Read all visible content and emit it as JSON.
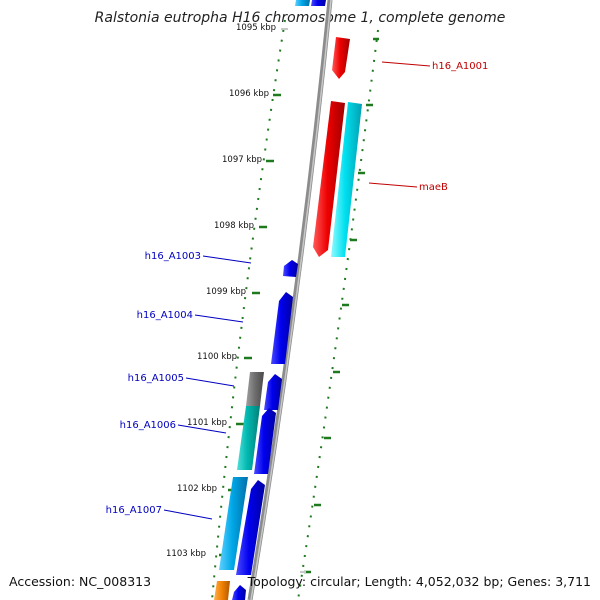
{
  "title": "Ralstonia eutropha H16 chromosome 1, complete genome",
  "footer": {
    "accession": "Accession: NC_008313",
    "topology": "Topology: circular; Length: 4,052,032 bp; Genes: 3,711"
  },
  "colors": {
    "backbone": "#8c8c8c",
    "tick": "#1f7a1f",
    "forward_label": "#c00000",
    "reverse_label": "#0000c0",
    "red": "#ee0000",
    "blue": "#0000ee",
    "cyan": "#00d8e8",
    "teal": "#00b8b0",
    "sky": "#00a8e8",
    "grey": "#6e6e6e",
    "orange": "#f08000"
  },
  "ticks": [
    "1095 kbp",
    "1096 kbp",
    "1097 kbp",
    "1098 kbp",
    "1099 kbp",
    "1100 kbp",
    "1101 kbp",
    "1102 kbp",
    "1103 kbp"
  ],
  "labels": [
    {
      "text": "h16_A1001",
      "side": "right"
    },
    {
      "text": "maeB",
      "side": "right"
    },
    {
      "text": "h16_A1003",
      "side": "left"
    },
    {
      "text": "h16_A1004",
      "side": "left"
    },
    {
      "text": "h16_A1005",
      "side": "left"
    },
    {
      "text": "h16_A1006",
      "side": "left"
    },
    {
      "text": "h16_A1007",
      "side": "left"
    }
  ]
}
